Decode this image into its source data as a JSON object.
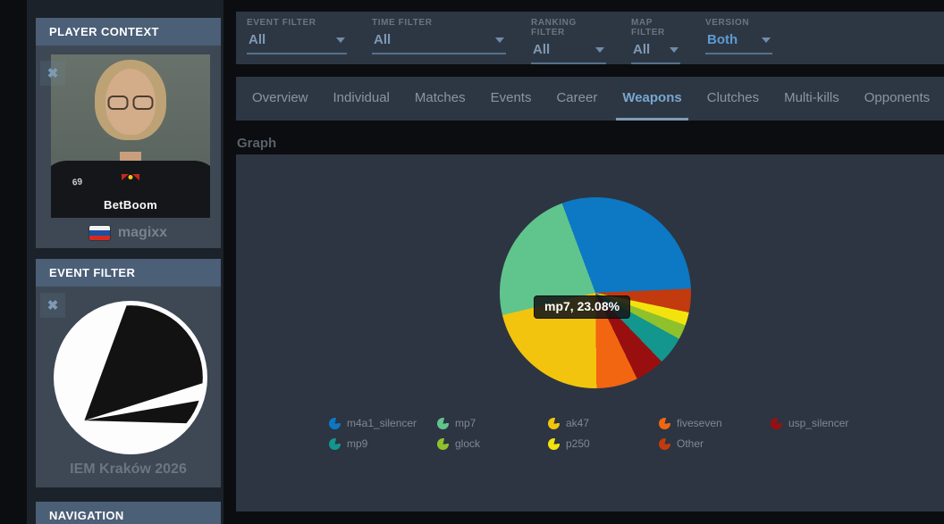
{
  "sidebar": {
    "player_context": {
      "title": "PLAYER CONTEXT",
      "player_name": "magixx",
      "flag": "russia",
      "close_icon": "✖",
      "shirt_number": "69",
      "shirt_brand": "BetBoom"
    },
    "event_filter": {
      "title": "EVENT FILTER",
      "event_name": "IEM Kraków 2026",
      "close_icon": "✖"
    },
    "navigation": {
      "title": "NAVIGATION"
    }
  },
  "filter_bar": {
    "items": [
      {
        "label": "EVENT FILTER",
        "value": "All",
        "accent": false
      },
      {
        "label": "TIME FILTER",
        "value": "All",
        "accent": false
      },
      {
        "label": "RANKING FILTER",
        "value": "All",
        "accent": false
      },
      {
        "label": "MAP FILTER",
        "value": "All",
        "accent": false
      },
      {
        "label": "VERSION",
        "value": "Both",
        "accent": true
      }
    ]
  },
  "tabs": {
    "items": [
      {
        "label": "Overview",
        "active": false
      },
      {
        "label": "Individual",
        "active": false
      },
      {
        "label": "Matches",
        "active": false
      },
      {
        "label": "Events",
        "active": false
      },
      {
        "label": "Career",
        "active": false
      },
      {
        "label": "Weapons",
        "active": true
      },
      {
        "label": "Clutches",
        "active": false
      },
      {
        "label": "Multi-kills",
        "active": false
      },
      {
        "label": "Opponents",
        "active": false
      }
    ]
  },
  "main": {
    "section_title": "Graph"
  },
  "chart_data": {
    "type": "pie",
    "title": "Graph",
    "units": "percent",
    "start_angle_deg": 87.5,
    "direction": "counterclockwise",
    "legend_position": "bottom",
    "tooltip_text": "mp7, 23.08%",
    "highlighted_slice": "mp7",
    "series": [
      {
        "name": "m4a1_silencer",
        "value": 29.98,
        "color": "#0d78c3"
      },
      {
        "name": "mp7",
        "value": 23.08,
        "color": "#60c48d"
      },
      {
        "name": "ak47",
        "value": 21.44,
        "color": "#f2c40e"
      },
      {
        "name": "fiveseven",
        "value": 6.98,
        "color": "#f26511"
      },
      {
        "name": "usp_silencer",
        "value": 5.02,
        "color": "#990f0f"
      },
      {
        "name": "mp9",
        "value": 4.8,
        "color": "#12968e"
      },
      {
        "name": "glock",
        "value": 2.5,
        "color": "#8fc12c"
      },
      {
        "name": "p250",
        "value": 2.2,
        "color": "#f2e30f"
      },
      {
        "name": "Other",
        "value": 4.0,
        "color": "#c23a0d"
      }
    ]
  },
  "colors": {
    "panel_header": "#4b5f77",
    "panel_body": "#3d4854",
    "bar_bg": "#2d3744",
    "chart_panel_bg": "#2c3541",
    "sidebar_bg": "#1c222a",
    "accent_blue": "#5e9ad0",
    "value_text": "#8199b4",
    "active_tab": "#78a6cf"
  }
}
